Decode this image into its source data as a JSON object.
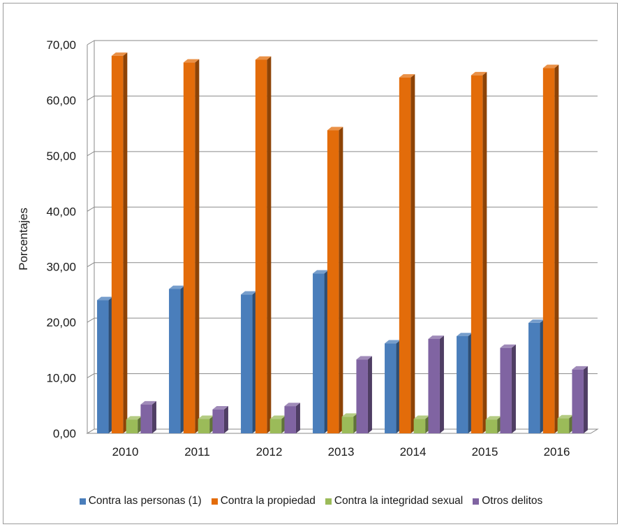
{
  "chart_data": {
    "type": "bar",
    "title": "",
    "xlabel": "",
    "ylabel": "Porcentajes",
    "ylim": [
      0,
      70
    ],
    "yticks": [
      "0,00",
      "10,00",
      "20,00",
      "30,00",
      "40,00",
      "50,00",
      "60,00",
      "70,00"
    ],
    "grid": true,
    "legend_position": "bottom",
    "categories": [
      "2010",
      "2011",
      "2012",
      "2013",
      "2014",
      "2015",
      "2016"
    ],
    "series": [
      {
        "name": "Contra las personas (1)",
        "color": "#4a7ebb",
        "values": [
          24.0,
          26.0,
          25.0,
          28.8,
          16.2,
          17.5,
          19.9
        ]
      },
      {
        "name": "Contra la propiedad",
        "color": "#e36c0a",
        "values": [
          68.0,
          66.8,
          67.3,
          54.6,
          64.1,
          64.5,
          65.8
        ]
      },
      {
        "name": "Contra la integridad sexual",
        "color": "#9bbb59",
        "values": [
          2.5,
          2.6,
          2.6,
          3.0,
          2.6,
          2.5,
          2.7
        ]
      },
      {
        "name": "Otros delitos",
        "color": "#8064a2",
        "values": [
          5.2,
          4.3,
          4.9,
          13.3,
          17.0,
          15.4,
          11.5
        ]
      }
    ]
  }
}
